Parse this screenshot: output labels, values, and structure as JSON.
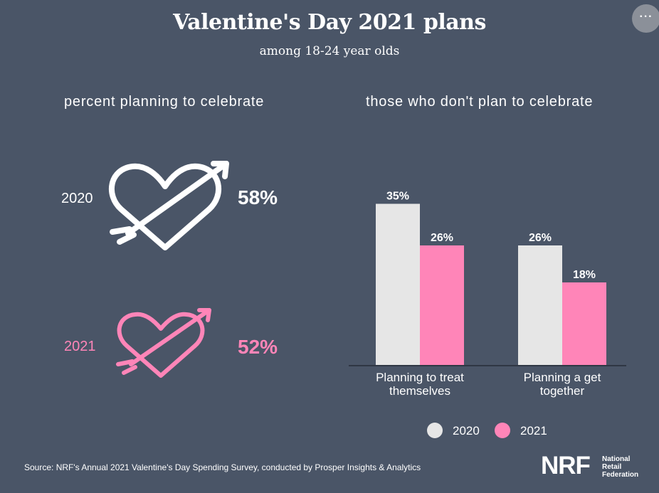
{
  "header": {
    "title": "Valentine's Day 2021 plans",
    "subtitle": "among 18-24 year olds",
    "more_label": "···"
  },
  "left_panel": {
    "heading": "percent planning to celebrate",
    "rows": [
      {
        "year": "2020",
        "percent_label": "58%",
        "value": 58,
        "color": "#ffffff"
      },
      {
        "year": "2021",
        "percent_label": "52%",
        "value": 52,
        "color": "#ff85b8"
      }
    ]
  },
  "right_panel": {
    "heading": "those who don't plan to celebrate"
  },
  "chart_data": {
    "type": "bar",
    "categories": [
      [
        "Planning to treat",
        "themselves"
      ],
      [
        "Planning a get",
        "together"
      ]
    ],
    "series": [
      {
        "name": "2020",
        "values": [
          35,
          26
        ],
        "labels": [
          "35%",
          "26%"
        ],
        "color": "#e6e6e6"
      },
      {
        "name": "2021",
        "values": [
          26,
          18
        ],
        "labels": [
          "26%",
          "18%"
        ],
        "color": "#ff85b8"
      }
    ],
    "title": "those who don't plan to celebrate",
    "xlabel": "",
    "ylabel": "",
    "ylim": [
      0,
      40
    ],
    "grid": false,
    "legend": "bottom"
  },
  "legend": [
    {
      "label": "2020",
      "color": "#e6e6e6"
    },
    {
      "label": "2021",
      "color": "#ff85b8"
    }
  ],
  "footer": {
    "source": "Source: NRF's Annual 2021 Valentine's Day Spending Survey, conducted by Prosper Insights & Analytics",
    "logo_mark": "NRF",
    "logo_text": [
      "National",
      "Retail",
      "Federation"
    ]
  },
  "icons": [
    "heart-arrow-icon",
    "more-options-icon"
  ]
}
